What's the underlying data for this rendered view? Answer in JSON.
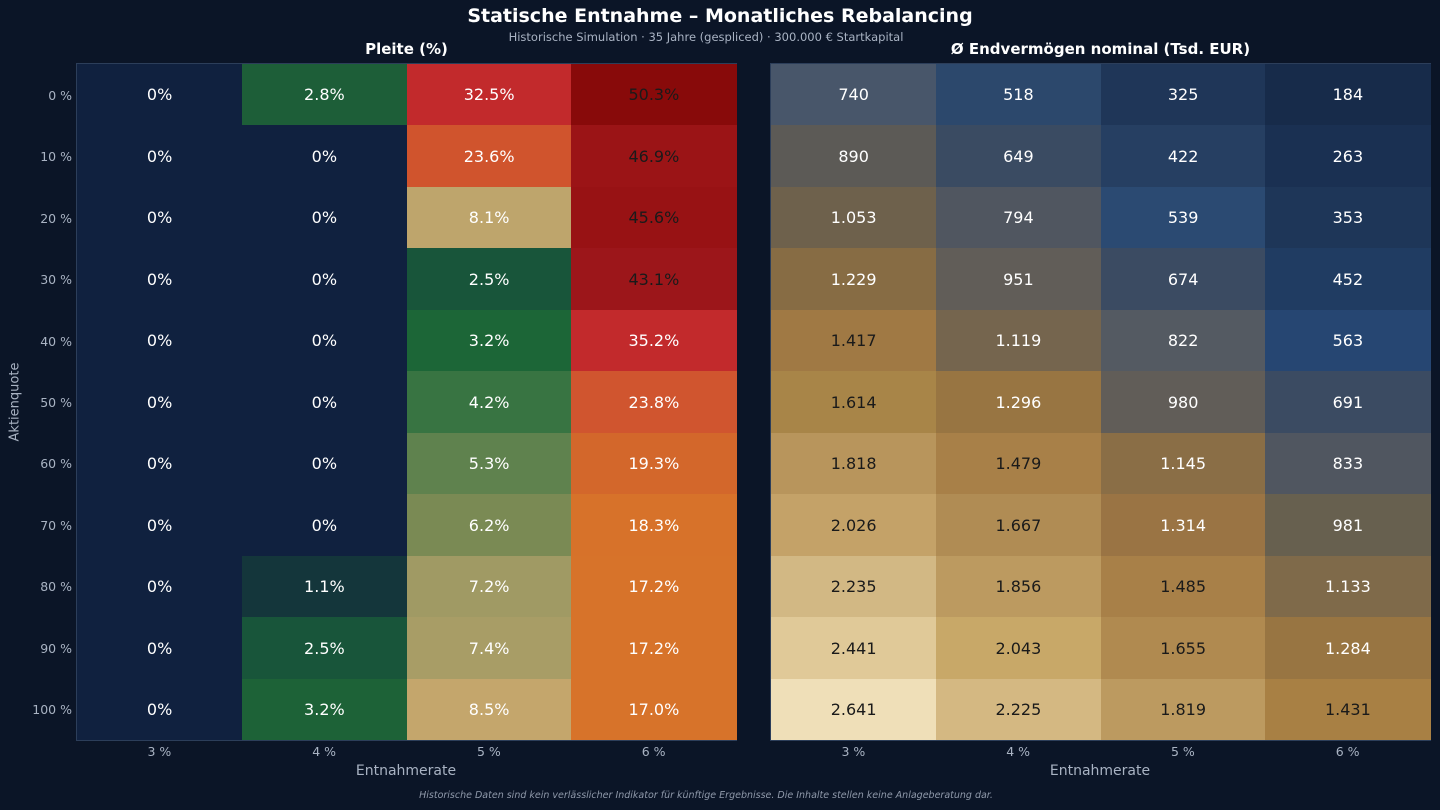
{
  "title": "Statische Entnahme – Monatliches Rebalancing",
  "subtitle": "Historische Simulation · 35 Jahre (gespliced) · 300.000 € Startkapital",
  "footnote": "Historische Daten sind kein verlässlicher Indikator für künftige Ergebnisse. Die Inhalte stellen keine Anlageberatung dar.",
  "chart_data": [
    {
      "type": "heatmap",
      "title": "Pleite (%)",
      "xlabel": "Entnahmerate",
      "ylabel": "Aktienquote",
      "x_categories": [
        "3 %",
        "4 %",
        "5 %",
        "6 %"
      ],
      "y_categories": [
        "0 %",
        "10 %",
        "20 %",
        "30 %",
        "40 %",
        "50 %",
        "60 %",
        "70 %",
        "80 %",
        "90 %",
        "100 %"
      ],
      "values": [
        [
          0,
          2.8,
          32.5,
          50.3
        ],
        [
          0,
          0,
          23.6,
          46.9
        ],
        [
          0,
          0,
          8.1,
          45.6
        ],
        [
          0,
          0,
          2.5,
          43.1
        ],
        [
          0,
          0,
          3.2,
          35.2
        ],
        [
          0,
          0,
          4.2,
          23.8
        ],
        [
          0,
          0,
          5.3,
          19.3
        ],
        [
          0,
          0,
          6.2,
          18.3
        ],
        [
          0,
          1.1,
          7.2,
          17.2
        ],
        [
          0,
          2.5,
          7.4,
          17.2
        ],
        [
          0,
          3.2,
          8.5,
          17.0
        ]
      ],
      "labels": [
        [
          "0%",
          "2.8%",
          "32.5%",
          "50.3%"
        ],
        [
          "0%",
          "0%",
          "23.6%",
          "46.9%"
        ],
        [
          "0%",
          "0%",
          "8.1%",
          "45.6%"
        ],
        [
          "0%",
          "0%",
          "2.5%",
          "43.1%"
        ],
        [
          "0%",
          "0%",
          "3.2%",
          "35.2%"
        ],
        [
          "0%",
          "0%",
          "4.2%",
          "23.8%"
        ],
        [
          "0%",
          "0%",
          "5.3%",
          "19.3%"
        ],
        [
          "0%",
          "0%",
          "6.2%",
          "18.3%"
        ],
        [
          "0%",
          "1.1%",
          "7.2%",
          "17.2%"
        ],
        [
          "0%",
          "2.5%",
          "7.4%",
          "17.2%"
        ],
        [
          "0%",
          "3.2%",
          "8.5%",
          "17.0%"
        ]
      ],
      "colors": [
        [
          "#10213f",
          "#1d5e38",
          "#c22a2c",
          "#880a0a"
        ],
        [
          "#10213f",
          "#10213f",
          "#d0542d",
          "#9b1416"
        ],
        [
          "#10213f",
          "#10213f",
          "#bea56c",
          "#981214"
        ],
        [
          "#10213f",
          "#10213f",
          "#18553a",
          "#9c161a"
        ],
        [
          "#10213f",
          "#10213f",
          "#1c6637",
          "#c22a2c"
        ],
        [
          "#10213f",
          "#10213f",
          "#387442",
          "#d0552f"
        ],
        [
          "#10213f",
          "#10213f",
          "#5f824e",
          "#d3672b"
        ],
        [
          "#10213f",
          "#10213f",
          "#7a8a54",
          "#d7722a"
        ],
        [
          "#10213f",
          "#14363b",
          "#a09a64",
          "#d7732a"
        ],
        [
          "#10213f",
          "#18553a",
          "#a89d66",
          "#d7732a"
        ],
        [
          "#10213f",
          "#1d6237",
          "#c4a66c",
          "#d7732a"
        ]
      ],
      "text_colors": [
        [
          "#ffffff",
          "#ffffff",
          "#ffffff",
          "#1a1a1a"
        ],
        [
          "#ffffff",
          "#ffffff",
          "#ffffff",
          "#1a1a1a"
        ],
        [
          "#ffffff",
          "#ffffff",
          "#ffffff",
          "#1a1a1a"
        ],
        [
          "#ffffff",
          "#ffffff",
          "#ffffff",
          "#1a1a1a"
        ],
        [
          "#ffffff",
          "#ffffff",
          "#ffffff",
          "#ffffff"
        ],
        [
          "#ffffff",
          "#ffffff",
          "#ffffff",
          "#ffffff"
        ],
        [
          "#ffffff",
          "#ffffff",
          "#ffffff",
          "#ffffff"
        ],
        [
          "#ffffff",
          "#ffffff",
          "#ffffff",
          "#ffffff"
        ],
        [
          "#ffffff",
          "#ffffff",
          "#ffffff",
          "#ffffff"
        ],
        [
          "#ffffff",
          "#ffffff",
          "#ffffff",
          "#ffffff"
        ],
        [
          "#ffffff",
          "#ffffff",
          "#ffffff",
          "#ffffff"
        ]
      ]
    },
    {
      "type": "heatmap",
      "title": "Ø Endvermögen nominal (Tsd. EUR)",
      "xlabel": "Entnahmerate",
      "x_categories": [
        "3 %",
        "4 %",
        "5 %",
        "6 %"
      ],
      "y_categories": [
        "0 %",
        "10 %",
        "20 %",
        "30 %",
        "40 %",
        "50 %",
        "60 %",
        "70 %",
        "80 %",
        "90 %",
        "100 %"
      ],
      "values": [
        [
          740,
          518,
          325,
          184
        ],
        [
          890,
          649,
          422,
          263
        ],
        [
          1053,
          794,
          539,
          353
        ],
        [
          1229,
          951,
          674,
          452
        ],
        [
          1417,
          1119,
          822,
          563
        ],
        [
          1614,
          1296,
          980,
          691
        ],
        [
          1818,
          1479,
          1145,
          833
        ],
        [
          2026,
          1667,
          1314,
          981
        ],
        [
          2235,
          1856,
          1485,
          1133
        ],
        [
          2441,
          2043,
          1655,
          1284
        ],
        [
          2641,
          2225,
          1819,
          1431
        ]
      ],
      "labels": [
        [
          "740",
          "518",
          "325",
          "184"
        ],
        [
          "890",
          "649",
          "422",
          "263"
        ],
        [
          "1.053",
          "794",
          "539",
          "353"
        ],
        [
          "1.229",
          "951",
          "674",
          "452"
        ],
        [
          "1.417",
          "1.119",
          "822",
          "563"
        ],
        [
          "1.614",
          "1.296",
          "980",
          "691"
        ],
        [
          "1.818",
          "1.479",
          "1.145",
          "833"
        ],
        [
          "2.026",
          "1.667",
          "1.314",
          "981"
        ],
        [
          "2.235",
          "1.856",
          "1.485",
          "1.133"
        ],
        [
          "2.441",
          "2.043",
          "1.655",
          "1.284"
        ],
        [
          "2.641",
          "2.225",
          "1.819",
          "1.431"
        ]
      ],
      "colors": [
        [
          "#48566a",
          "#2c486c",
          "#1f3658",
          "#172b4a"
        ],
        [
          "#5c5a56",
          "#3a4b62",
          "#263f62",
          "#1a3052"
        ],
        [
          "#6e614c",
          "#505660",
          "#2b4a72",
          "#1e3658"
        ],
        [
          "#876c44",
          "#615d58",
          "#3b4b62",
          "#203c62"
        ],
        [
          "#a07944",
          "#75654e",
          "#545a62",
          "#264672"
        ],
        [
          "#a88548",
          "#987542",
          "#615d58",
          "#3b4b62"
        ],
        [
          "#b8955c",
          "#a88048",
          "#8a6e46",
          "#505660"
        ],
        [
          "#c4a268",
          "#b08c54",
          "#9a7444",
          "#67604f"
        ],
        [
          "#d2b884",
          "#bc9a60",
          "#a88048",
          "#7f6a4a"
        ],
        [
          "#e0c998",
          "#c8a868",
          "#b08a50",
          "#987542"
        ],
        [
          "#efdfb8",
          "#d4b882",
          "#bc9a60",
          "#a88044"
        ]
      ],
      "text_colors": [
        [
          "#ffffff",
          "#ffffff",
          "#ffffff",
          "#ffffff"
        ],
        [
          "#ffffff",
          "#ffffff",
          "#ffffff",
          "#ffffff"
        ],
        [
          "#ffffff",
          "#ffffff",
          "#ffffff",
          "#ffffff"
        ],
        [
          "#ffffff",
          "#ffffff",
          "#ffffff",
          "#ffffff"
        ],
        [
          "#1a1a1a",
          "#ffffff",
          "#ffffff",
          "#ffffff"
        ],
        [
          "#1a1a1a",
          "#ffffff",
          "#ffffff",
          "#ffffff"
        ],
        [
          "#1a1a1a",
          "#1a1a1a",
          "#ffffff",
          "#ffffff"
        ],
        [
          "#1a1a1a",
          "#1a1a1a",
          "#ffffff",
          "#ffffff"
        ],
        [
          "#1a1a1a",
          "#1a1a1a",
          "#1a1a1a",
          "#ffffff"
        ],
        [
          "#1a1a1a",
          "#1a1a1a",
          "#1a1a1a",
          "#ffffff"
        ],
        [
          "#1a1a1a",
          "#1a1a1a",
          "#1a1a1a",
          "#1a1a1a"
        ]
      ]
    }
  ]
}
